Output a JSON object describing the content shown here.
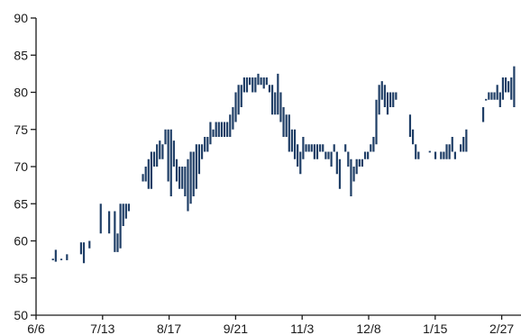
{
  "chart_data": {
    "type": "range_bar",
    "title": "",
    "xlabel": "",
    "ylabel": "",
    "x_ticks": [
      "6/6",
      "7/13",
      "8/17",
      "9/21",
      "11/3",
      "12/8",
      "1/15",
      "2/27"
    ],
    "y_ticks": [
      50,
      55,
      60,
      65,
      70,
      75,
      80,
      85,
      90
    ],
    "ylim": [
      50,
      90
    ],
    "grid": false,
    "legend": "none",
    "color": "#1f3e66",
    "series": [
      {
        "values": [
          [
            6,
            57.5,
            57.5
          ],
          [
            7,
            57.2,
            58.8
          ],
          [
            9,
            57.4,
            57.6
          ],
          [
            11,
            57.4,
            58.2
          ],
          [
            16,
            58.2,
            59.8
          ],
          [
            17,
            57.0,
            59.8
          ],
          [
            19,
            59.0,
            60.0
          ],
          [
            23,
            61.0,
            65.0
          ],
          [
            26,
            61.0,
            64.0
          ],
          [
            28,
            58.5,
            64.0
          ],
          [
            29,
            58.5,
            61.0
          ],
          [
            30,
            59.0,
            65.0
          ],
          [
            31,
            62.0,
            65.0
          ],
          [
            32,
            63.0,
            65.0
          ],
          [
            33,
            64.0,
            65.0
          ],
          [
            38,
            68.0,
            69.0
          ],
          [
            39,
            68.0,
            70.0
          ],
          [
            40,
            67.0,
            71.0
          ],
          [
            41,
            67.0,
            72.0
          ],
          [
            42,
            70.0,
            72.0
          ],
          [
            43,
            70.0,
            73.0
          ],
          [
            44,
            71.0,
            73.5
          ],
          [
            45,
            71.0,
            73.0
          ],
          [
            46,
            73.0,
            75.0
          ],
          [
            47,
            68.0,
            75.0
          ],
          [
            48,
            66.0,
            75.0
          ],
          [
            49,
            70.0,
            73.5
          ],
          [
            50,
            68.0,
            71.0
          ],
          [
            51,
            67.0,
            70.0
          ],
          [
            52,
            67.0,
            70.0
          ],
          [
            53,
            66.0,
            70.0
          ],
          [
            54,
            64.0,
            71.0
          ],
          [
            55,
            65.0,
            72.0
          ],
          [
            56,
            66.0,
            72.0
          ],
          [
            57,
            67.0,
            73.0
          ],
          [
            58,
            69.0,
            73.0
          ],
          [
            59,
            71.0,
            73.0
          ],
          [
            60,
            72.0,
            74.0
          ],
          [
            61,
            72.0,
            74.0
          ],
          [
            62,
            73.0,
            76.0
          ],
          [
            63,
            74.0,
            75.0
          ],
          [
            64,
            74.0,
            76.0
          ],
          [
            65,
            74.0,
            76.0
          ],
          [
            66,
            74.0,
            76.0
          ],
          [
            67,
            74.0,
            76.0
          ],
          [
            68,
            74.0,
            76.0
          ],
          [
            69,
            74.0,
            77.0
          ],
          [
            70,
            75.0,
            78.0
          ],
          [
            71,
            76.0,
            80.0
          ],
          [
            72,
            77.0,
            81.0
          ],
          [
            73,
            78.0,
            81.0
          ],
          [
            74,
            80.0,
            82.0
          ],
          [
            75,
            80.0,
            82.0
          ],
          [
            76,
            81.0,
            82.0
          ],
          [
            77,
            80.0,
            82.0
          ],
          [
            78,
            80.0,
            82.0
          ],
          [
            79,
            81.0,
            82.5
          ],
          [
            80,
            81.0,
            82.0
          ],
          [
            81,
            80.5,
            82.0
          ],
          [
            82,
            81.0,
            82.0
          ],
          [
            83,
            80.0,
            81.0
          ],
          [
            84,
            77.0,
            81.0
          ],
          [
            85,
            77.0,
            80.0
          ],
          [
            86,
            77.0,
            82.5
          ],
          [
            87,
            76.0,
            80.0
          ],
          [
            88,
            74.0,
            78.0
          ],
          [
            89,
            74.0,
            77.0
          ],
          [
            90,
            72.0,
            77.0
          ],
          [
            91,
            72.0,
            75.0
          ],
          [
            92,
            71.0,
            75.0
          ],
          [
            93,
            70.0,
            73.0
          ],
          [
            94,
            69.0,
            72.0
          ],
          [
            95,
            71.0,
            74.0
          ],
          [
            96,
            72.0,
            73.0
          ],
          [
            97,
            72.0,
            73.0
          ],
          [
            98,
            72.0,
            73.0
          ],
          [
            99,
            71.0,
            73.0
          ],
          [
            100,
            71.0,
            73.0
          ],
          [
            101,
            72.0,
            73.0
          ],
          [
            102,
            72.0,
            73.0
          ],
          [
            103,
            71.0,
            72.0
          ],
          [
            104,
            71.0,
            72.0
          ],
          [
            105,
            70.0,
            72.0
          ],
          [
            106,
            72.0,
            73.0
          ],
          [
            107,
            69.0,
            72.0
          ],
          [
            108,
            67.0,
            71.0
          ],
          [
            110,
            72.0,
            73.0
          ],
          [
            111,
            70.0,
            72.0
          ],
          [
            112,
            66.0,
            71.0
          ],
          [
            113,
            68.0,
            70.0
          ],
          [
            114,
            69.0,
            71.0
          ],
          [
            115,
            70.0,
            71.0
          ],
          [
            116,
            70.0,
            71.0
          ],
          [
            117,
            71.0,
            72.0
          ],
          [
            118,
            71.0,
            72.0
          ],
          [
            119,
            72.0,
            73.0
          ],
          [
            120,
            72.0,
            74.0
          ],
          [
            121,
            73.0,
            79.0
          ],
          [
            122,
            77.0,
            81.0
          ],
          [
            123,
            79.0,
            81.5
          ],
          [
            124,
            78.0,
            81.0
          ],
          [
            125,
            77.0,
            80.0
          ],
          [
            126,
            78.0,
            80.0
          ],
          [
            127,
            78.0,
            80.0
          ],
          [
            128,
            79.0,
            80.0
          ],
          [
            133,
            74.0,
            77.0
          ],
          [
            134,
            73.0,
            75.0
          ],
          [
            135,
            71.0,
            73.0
          ],
          [
            136,
            71.0,
            72.0
          ],
          [
            140,
            72.0,
            72.0
          ],
          [
            142,
            71.0,
            72.0
          ],
          [
            144,
            71.0,
            72.0
          ],
          [
            145,
            71.0,
            72.0
          ],
          [
            146,
            71.0,
            73.0
          ],
          [
            147,
            71.0,
            73.0
          ],
          [
            148,
            72.0,
            74.0
          ],
          [
            149,
            71.0,
            72.0
          ],
          [
            151,
            72.0,
            73.0
          ],
          [
            152,
            72.0,
            74.0
          ],
          [
            153,
            72.0,
            75.0
          ],
          [
            159,
            76.0,
            78.0
          ],
          [
            160,
            79.0,
            79.0
          ],
          [
            161,
            79.0,
            80.0
          ],
          [
            162,
            79.0,
            80.0
          ],
          [
            163,
            79.0,
            80.0
          ],
          [
            164,
            79.0,
            81.0
          ],
          [
            165,
            78.0,
            80.0
          ],
          [
            166,
            79.0,
            82.0
          ],
          [
            167,
            80.0,
            82.0
          ],
          [
            168,
            80.0,
            81.5
          ],
          [
            169,
            79.0,
            82.0
          ],
          [
            170,
            78.0,
            83.5
          ]
        ]
      }
    ]
  }
}
